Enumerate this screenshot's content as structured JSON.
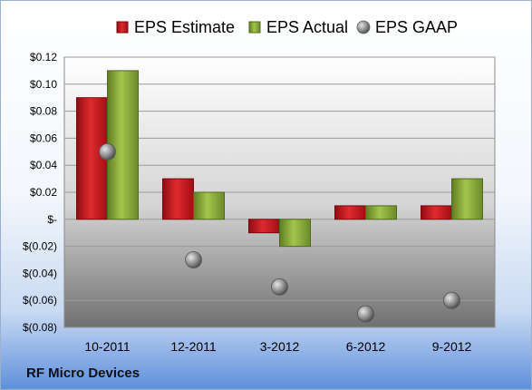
{
  "chart_data": {
    "type": "bar",
    "categories": [
      "10-2011",
      "12-2011",
      "3-2012",
      "6-2012",
      "9-2012"
    ],
    "series": [
      {
        "name": "EPS Estimate",
        "values": [
          0.09,
          0.03,
          -0.01,
          0.01,
          0.01
        ],
        "color": "#c8151b"
      },
      {
        "name": "EPS Actual",
        "values": [
          0.11,
          0.02,
          -0.02,
          0.01,
          0.03
        ],
        "color": "#8db039"
      },
      {
        "name": "EPS GAAP",
        "values": [
          0.05,
          -0.03,
          -0.05,
          -0.07,
          -0.06
        ],
        "color": "#9a9a9a",
        "marker": "sphere"
      }
    ],
    "ylim": [
      -0.08,
      0.12
    ],
    "yticks": [
      {
        "value": 0.12,
        "label": "$0.12"
      },
      {
        "value": 0.1,
        "label": "$0.10"
      },
      {
        "value": 0.08,
        "label": "$0.08"
      },
      {
        "value": 0.06,
        "label": "$0.06"
      },
      {
        "value": 0.04,
        "label": "$0.04"
      },
      {
        "value": 0.02,
        "label": "$0.02"
      },
      {
        "value": 0,
        "label": "$-"
      },
      {
        "value": -0.02,
        "label": "$(0.02)"
      },
      {
        "value": -0.04,
        "label": "$(0.04)"
      },
      {
        "value": -0.06,
        "label": "$(0.06)"
      },
      {
        "value": -0.08,
        "label": "$(0.08)"
      }
    ],
    "grid": true,
    "legend": "top"
  },
  "footer": {
    "company": "RF Micro Devices"
  }
}
